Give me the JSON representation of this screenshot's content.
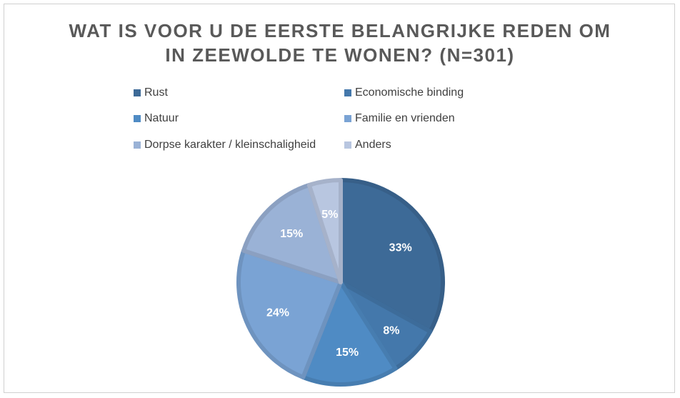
{
  "chart_data": {
    "type": "pie",
    "title_lines": [
      "WAT IS VOOR U DE EERSTE BELANGRIJKE REDEN OM",
      "IN ZEEWOLDE TE WONEN? (N=301)"
    ],
    "categories": [
      "Rust",
      "Economische binding",
      "Natuur",
      "Familie en vrienden",
      "Dorpse karakter / kleinschaligheid",
      "Anders"
    ],
    "values": [
      33,
      8,
      15,
      24,
      15,
      5
    ],
    "labels": [
      "33%",
      "8%",
      "15%",
      "24%",
      "15%",
      "5%"
    ],
    "unit": "%",
    "colors": [
      "#3d6a97",
      "#4478ab",
      "#4f8bc4",
      "#7aa3d4",
      "#9ab2d6",
      "#b8c6e0"
    ],
    "legend_position": "top"
  }
}
